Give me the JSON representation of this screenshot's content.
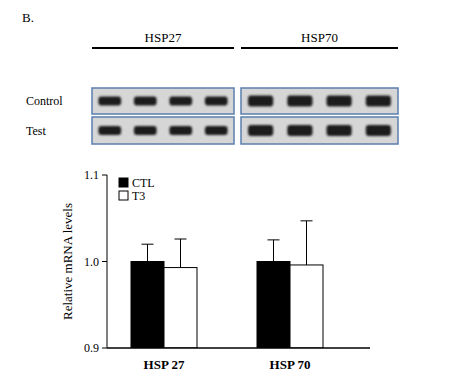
{
  "panel_label": "B.",
  "gel": {
    "groups": [
      "HSP27",
      "HSP70"
    ],
    "rows": [
      "Control",
      "Test"
    ],
    "lanes_per_group": 4
  },
  "chart_data": {
    "type": "bar",
    "categories": [
      "HSP 27",
      "HSP 70"
    ],
    "series": [
      {
        "name": "CTL",
        "color": "#000000",
        "values": [
          1.0,
          1.0
        ],
        "errors": [
          0.02,
          0.025
        ]
      },
      {
        "name": "T3",
        "color": "#ffffff",
        "values": [
          0.993,
          0.996
        ],
        "errors": [
          0.033,
          0.051
        ]
      }
    ],
    "y_label": "Relative mRNA levels",
    "ylim": [
      0.9,
      1.1
    ],
    "yticks": [
      0.9,
      {
        "value": 1,
        "label": "1.0"
      },
      1.1
    ],
    "legend": "upper left",
    "grid": false
  }
}
